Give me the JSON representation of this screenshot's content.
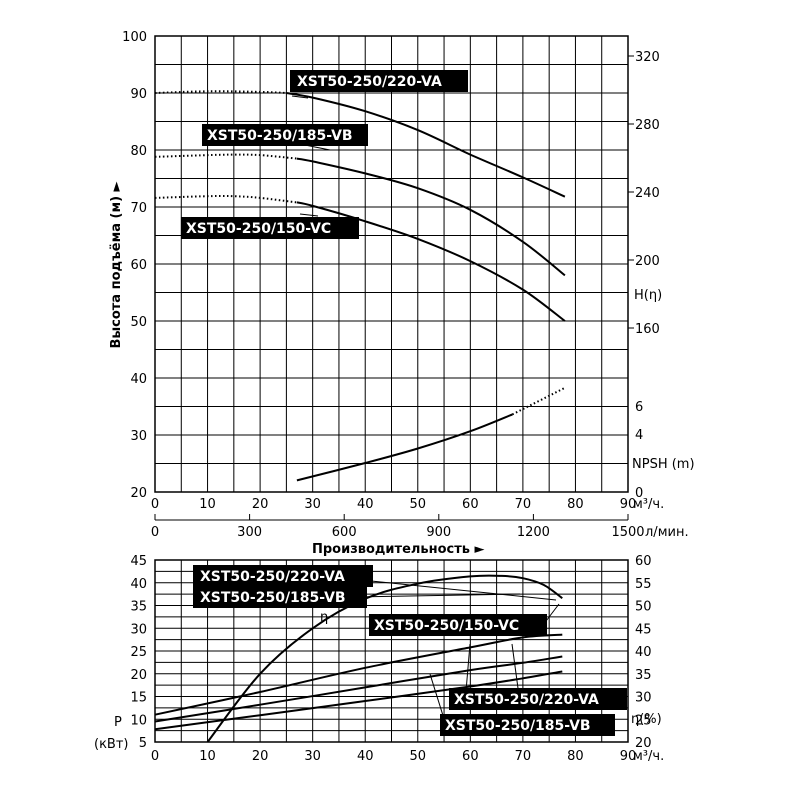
{
  "chart_data": [
    {
      "type": "line",
      "name": "head",
      "x_unit": "м³/ч.",
      "x_ticks": [
        0,
        10,
        20,
        30,
        40,
        50,
        60,
        70,
        80,
        90
      ],
      "x2_unit": "л/мин.",
      "x2_ticks": [
        0,
        300,
        600,
        900,
        1200,
        1500
      ],
      "xlabel": "Производительность ►",
      "ylabel": "Высота подъёма (м) ►",
      "ylim": [
        20,
        100
      ],
      "y_ticks": [
        20,
        30,
        40,
        50,
        60,
        70,
        80,
        90,
        100
      ],
      "right_axis": {
        "h_label": "H(η)",
        "h_ticks": [
          160,
          200,
          240,
          280,
          320
        ],
        "npsh_label": "NPSH (m)",
        "npsh_ticks": [
          0,
          4,
          6
        ]
      },
      "series": [
        {
          "name": "XST50-250/220-VA",
          "x": [
            0,
            10,
            20,
            25,
            30,
            40,
            50,
            60,
            70,
            78
          ],
          "y": [
            90,
            90.3,
            90.2,
            90.0,
            89.2,
            86.8,
            83.5,
            79.2,
            75.2,
            71.8
          ],
          "dotted_until_x": 25
        },
        {
          "name": "XST50-250/185-VB",
          "x": [
            0,
            10,
            15,
            20,
            27,
            30,
            40,
            50,
            60,
            70,
            78
          ],
          "y": [
            78.8,
            79.1,
            79.2,
            79.1,
            78.5,
            78.0,
            75.9,
            73.3,
            69.5,
            63.9,
            58.0
          ],
          "dotted_until_x": 27
        },
        {
          "name": "XST50-250/150-VC",
          "x": [
            0,
            10,
            15,
            20,
            27,
            30,
            40,
            50,
            60,
            70,
            78
          ],
          "y": [
            71.6,
            71.9,
            71.9,
            71.6,
            70.8,
            70.2,
            67.5,
            64.4,
            60.5,
            55.5,
            50.0
          ],
          "dotted_until_x": 27
        },
        {
          "name": "NPSH",
          "x": [
            27,
            40,
            50,
            60,
            68,
            78
          ],
          "y": [
            0.8,
            2.0,
            3.0,
            4.2,
            5.4,
            7.3
          ],
          "y_unit": "m",
          "dotted_from_x": 68
        }
      ]
    },
    {
      "type": "line",
      "name": "power-efficiency",
      "x_unit": "м³/ч.",
      "x_ticks": [
        0,
        10,
        20,
        30,
        40,
        50,
        60,
        70,
        80,
        90
      ],
      "ylabel_lines": [
        "P",
        "(кВт)"
      ],
      "ylim": [
        5,
        45
      ],
      "y_ticks": [
        5,
        10,
        15,
        20,
        25,
        30,
        35,
        40,
        45
      ],
      "y2label": "η(%)",
      "y2lim": [
        20,
        60
      ],
      "y2_ticks": [
        20,
        25,
        30,
        35,
        40,
        45,
        50,
        55,
        60
      ],
      "eta_label": "η",
      "series": [
        {
          "name": "η",
          "axis": "y2",
          "x": [
            10,
            20,
            30,
            40,
            50,
            60,
            66,
            70,
            74,
            77.5
          ],
          "y": [
            20,
            35,
            45,
            51.5,
            54.8,
            56.4,
            56.5,
            56.0,
            54.5,
            51.6
          ]
        },
        {
          "name": "XST50-250/220-VA",
          "axis": "y",
          "x": [
            0,
            20,
            40,
            60,
            70,
            77.5
          ],
          "y": [
            11,
            16,
            21.3,
            25.8,
            28.0,
            28.6
          ]
        },
        {
          "name": "XST50-250/185-VB",
          "axis": "y",
          "x": [
            0,
            20,
            40,
            60,
            70,
            77.5
          ],
          "y": [
            9.5,
            13.2,
            17.0,
            20.8,
            22.4,
            23.8
          ]
        },
        {
          "name": "XST50-250/150-VC",
          "axis": "y",
          "x": [
            0,
            20,
            40,
            60,
            70,
            77.5
          ],
          "y": [
            7.8,
            10.9,
            14.0,
            17.2,
            19.0,
            20.5
          ]
        }
      ]
    }
  ],
  "labels": {
    "top_220": "XST50-250/220-VA",
    "top_185": "XST50-250/185-VB",
    "top_150": "XST50-250/150-VC",
    "bot_220_a": "XST50-250/220-VA",
    "bot_185_a": "XST50-250/185-VB",
    "bot_150": "XST50-250/150-VC",
    "bot_220_b": "XST50-250/220-VA",
    "bot_185_b": "XST50-250/185-VB"
  },
  "colors": {
    "line": "#000000",
    "label_bg": "#000000",
    "label_text": "#ffffff",
    "background": "#ffffff"
  }
}
